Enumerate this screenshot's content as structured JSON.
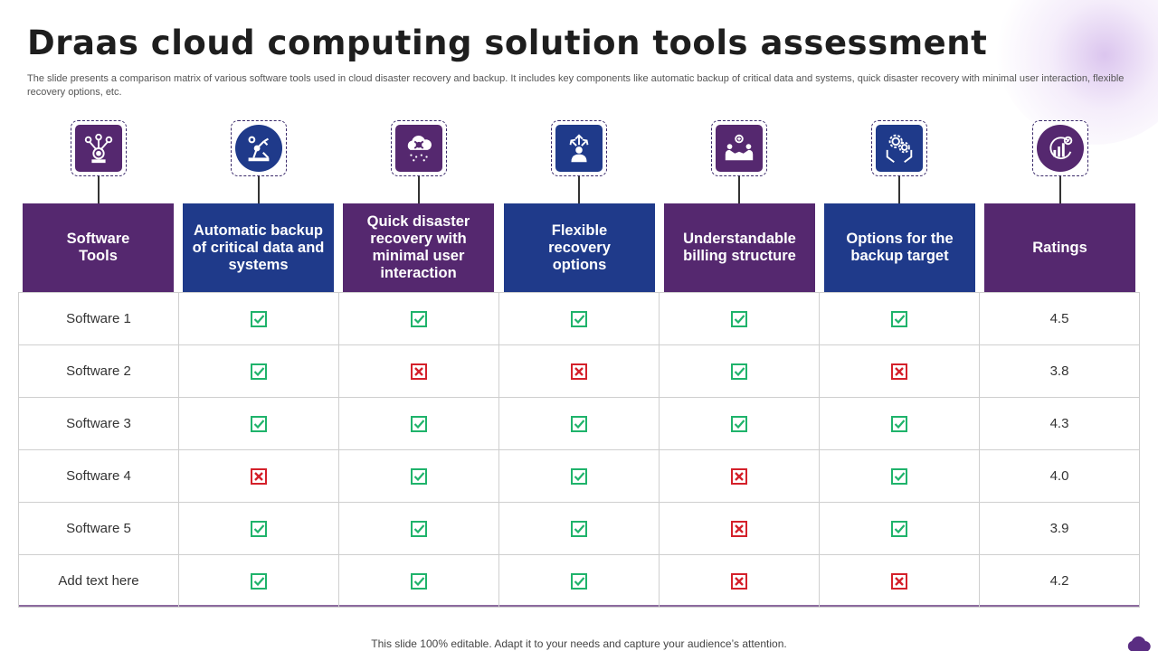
{
  "title": "Draas cloud computing solution tools assessment",
  "subtitle": "The slide presents a comparison matrix of various software tools used in cloud disaster recovery and backup. It includes key components like automatic backup of critical data and systems, quick disaster recovery with minimal user interaction, flexible recovery options, etc.",
  "columns": [
    {
      "label": "Software\nTools",
      "icon": "software-network-icon"
    },
    {
      "label": "Automatic backup of critical data and systems",
      "icon": "robot-arm-icon"
    },
    {
      "label": "Quick disaster recovery with minimal user interaction",
      "icon": "storm-cloud-icon"
    },
    {
      "label": "Flexible recovery options",
      "icon": "person-arrows-icon"
    },
    {
      "label": "Understandable billing structure",
      "icon": "handshake-icon"
    },
    {
      "label": "Options for the backup target",
      "icon": "gears-hands-icon"
    },
    {
      "label": "Ratings",
      "icon": "growth-chart-icon"
    }
  ],
  "rows": [
    {
      "name": "Software 1",
      "marks": [
        "check",
        "check",
        "check",
        "check",
        "check"
      ],
      "rating": "4.5"
    },
    {
      "name": "Software 2",
      "marks": [
        "check",
        "cross",
        "cross",
        "check",
        "cross"
      ],
      "rating": "3.8"
    },
    {
      "name": "Software 3",
      "marks": [
        "check",
        "check",
        "check",
        "check",
        "check"
      ],
      "rating": "4.3"
    },
    {
      "name": "Software 4",
      "marks": [
        "cross",
        "check",
        "check",
        "cross",
        "check"
      ],
      "rating": "4.0"
    },
    {
      "name": "Software 5",
      "marks": [
        "check",
        "check",
        "check",
        "cross",
        "check"
      ],
      "rating": "3.9"
    },
    {
      "name": "Add text here",
      "marks": [
        "check",
        "check",
        "check",
        "cross",
        "cross"
      ],
      "rating": "4.2"
    }
  ],
  "footer": "This slide 100% editable. Adapt it to your needs and capture your audience’s attention.",
  "colors": {
    "purple": "#55286f",
    "navy": "#1f3a8a",
    "check": "#1fb36b",
    "cross": "#d4202a"
  }
}
